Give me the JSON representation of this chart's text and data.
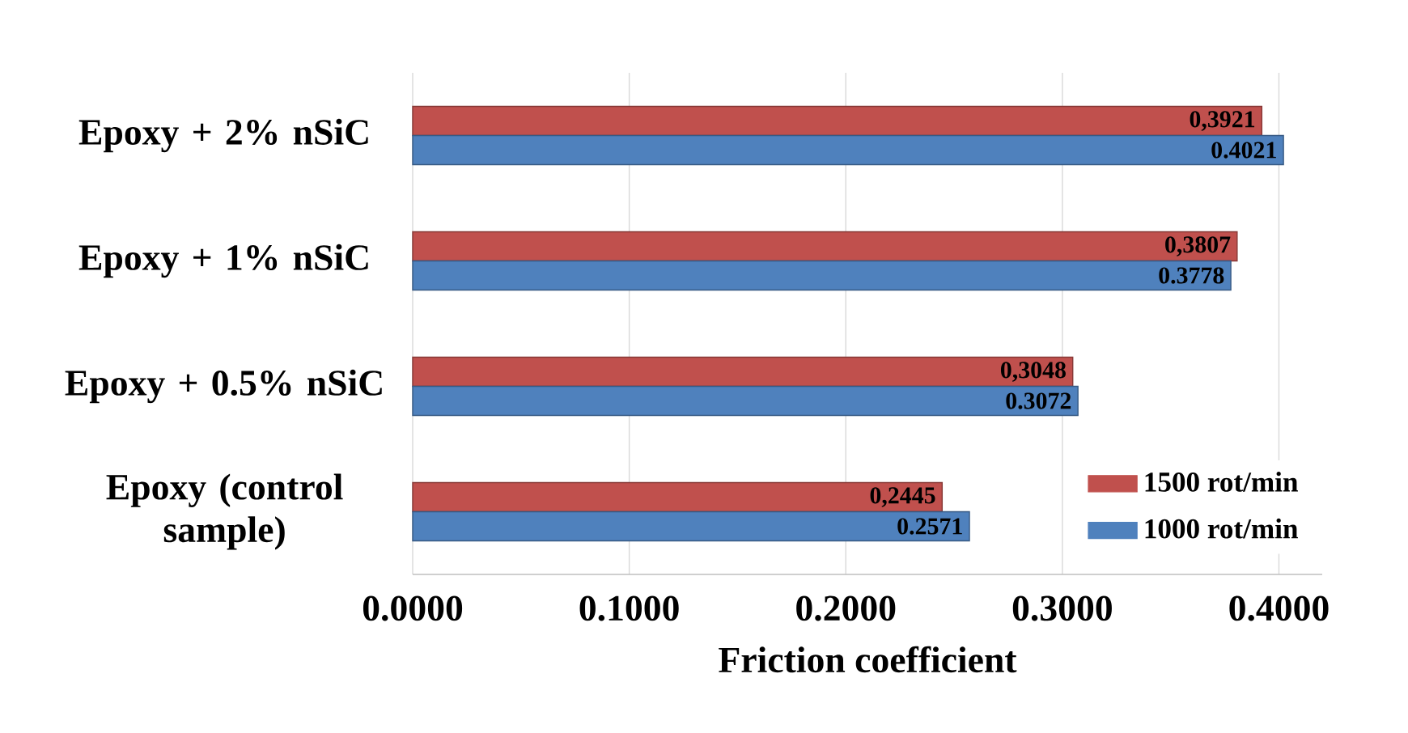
{
  "chart_data": {
    "type": "bar",
    "orientation": "horizontal",
    "xlabel": "Friction coefficient",
    "categories": [
      "Epoxy + 2% nSiC",
      "Epoxy + 1% nSiC",
      "Epoxy + 0.5% nSiC",
      "Epoxy (control sample)"
    ],
    "series": [
      {
        "name": "1500 rot/min",
        "color": "#c0504d",
        "values": [
          0.3921,
          0.3807,
          0.3048,
          0.2445
        ],
        "value_labels": [
          "0,3921",
          "0,3807",
          "0,3048",
          "0,2445"
        ]
      },
      {
        "name": "1000 rot/min",
        "color": "#4f81bd",
        "values": [
          0.4021,
          0.3778,
          0.3072,
          0.2571
        ],
        "value_labels": [
          "0.4021",
          "0.3778",
          "0.3072",
          "0.2571"
        ]
      }
    ],
    "xlim": [
      0,
      0.42
    ],
    "xticks": [
      {
        "value": 0,
        "label": "0.0000"
      },
      {
        "value": 0.1,
        "label": "0.1000"
      },
      {
        "value": 0.2,
        "label": "0.2000"
      },
      {
        "value": 0.3,
        "label": "0.3000"
      },
      {
        "value": 0.4,
        "label": "0.4000"
      }
    ],
    "grid": "x",
    "legend": "bottom right"
  }
}
